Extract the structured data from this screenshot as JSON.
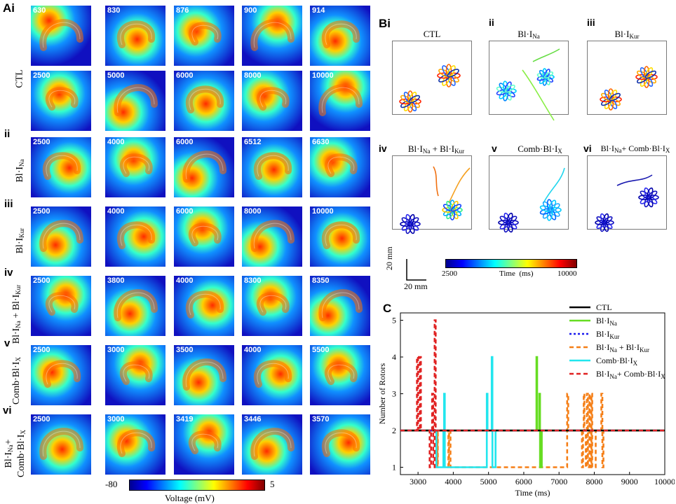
{
  "panel_a": {
    "letter": "Ai",
    "row_labels": {
      "ctl": "CTL",
      "ii_roman": "ii",
      "ii_text": "Bl·I",
      "ii_sub": "Na",
      "iii_roman": "iii",
      "iii_text": "Bl·I",
      "iii_sub": "Kur",
      "iv_roman": "iv",
      "iv_a": "Bl·I",
      "iv_a_sub": "Na",
      "iv_plus": " + Bl·I",
      "iv_b_sub": "Kur",
      "v_roman": "v",
      "v_text": "Comb·Bl·I",
      "v_sub": "X",
      "vi_roman": "vi",
      "vi_line1": "Bl·I",
      "vi_line1_sub": "Na",
      "vi_line1_plus": "+",
      "vi_line2": "Comb·Bl·I",
      "vi_line2_sub": "X"
    },
    "rows": [
      {
        "key": "ctl1",
        "times": [
          "630",
          "830",
          "876",
          "900",
          "914"
        ]
      },
      {
        "key": "ctl2",
        "times": [
          "2500",
          "5000",
          "6000",
          "8000",
          "10000"
        ]
      },
      {
        "key": "ii",
        "times": [
          "2500",
          "4000",
          "6000",
          "6512",
          "6630"
        ]
      },
      {
        "key": "iii",
        "times": [
          "2500",
          "4000",
          "6000",
          "8000",
          "10000"
        ]
      },
      {
        "key": "iv",
        "times": [
          "2500",
          "3800",
          "4000",
          "8300",
          "8350"
        ]
      },
      {
        "key": "v",
        "times": [
          "2500",
          "3000",
          "3500",
          "4000",
          "5500"
        ]
      },
      {
        "key": "vi",
        "times": [
          "2500",
          "3000",
          "3419",
          "3446",
          "3570"
        ]
      }
    ],
    "colorbar": {
      "min_label": "-80",
      "max_label": "5",
      "label": "Voltage (mV)"
    }
  },
  "panel_b": {
    "letter": "Bi",
    "titles": {
      "i": "CTL",
      "ii_roman": "ii",
      "ii_text": "Bl·I",
      "ii_sub": "Na",
      "iii_roman": "iii",
      "iii_text": "Bl·I",
      "iii_sub": "Kur",
      "iv_roman": "iv",
      "iv_a": "Bl·I",
      "iv_a_sub": "Na",
      "iv_plus": " + Bl·I",
      "iv_b_sub": "Kur",
      "v_roman": "v",
      "v_text": "Comb·Bl·I",
      "v_sub": "X",
      "vi_roman": "vi",
      "vi_a": "Bl·I",
      "vi_a_sub": "Na",
      "vi_plus": "+ Comb·Bl·I",
      "vi_b_sub": "X"
    },
    "scale_y": "20 mm",
    "scale_x": "20 mm",
    "colorbar": {
      "min_label": "2500",
      "max_label": "10000",
      "label": "Time  (ms)"
    }
  },
  "colors": {
    "ctl": "#000000",
    "bl_ina": "#66dd22",
    "bl_ikur": "#1a1aee",
    "bl_ina_ikur": "#f57f17",
    "comb": "#22e6ee",
    "bl_ina_comb": "#e02222"
  },
  "chart_data": {
    "type": "line",
    "letter": "C",
    "title": "",
    "xlabel": "Time (ms)",
    "ylabel": "Number of Rotors",
    "xlim": [
      2500,
      10000
    ],
    "ylim": [
      0.8,
      5.2
    ],
    "xticks": [
      "3000",
      "4000",
      "5000",
      "6000",
      "7000",
      "8000",
      "9000",
      "10000"
    ],
    "yticks": [
      "1",
      "2",
      "3",
      "4",
      "5"
    ],
    "legend": [
      {
        "name": "CTL",
        "sub": "",
        "sub2": ""
      },
      {
        "name": "Bl·I",
        "sub": "Na",
        "sub2": ""
      },
      {
        "name": "Bl·I",
        "sub": "Kur",
        "sub2": ""
      },
      {
        "name": "Bl·I",
        "sub": "Na",
        "mid": " + Bl·I",
        "sub2": "Kur"
      },
      {
        "name": "Comb·Bl·I",
        "sub": "X",
        "sub2": ""
      },
      {
        "name": "Bl·I",
        "sub": "Na",
        "mid": "+ Comb·Bl·I",
        "sub2": "X"
      }
    ],
    "series": [
      {
        "name": "Bl·I_Na + Bl·I_Kur",
        "color": "#f57f17",
        "dash": "6,4",
        "points": [
          [
            2500,
            2
          ],
          [
            3550,
            2
          ],
          [
            3550,
            1
          ],
          [
            3560,
            1
          ],
          [
            3560,
            2
          ],
          [
            3860,
            2
          ],
          [
            3860,
            1
          ],
          [
            3880,
            1
          ],
          [
            3880,
            2
          ],
          [
            3920,
            2
          ],
          [
            3920,
            1
          ],
          [
            7230,
            1
          ],
          [
            7230,
            3
          ],
          [
            7260,
            3
          ],
          [
            7260,
            2
          ],
          [
            7650,
            2
          ],
          [
            7650,
            1
          ],
          [
            7680,
            1
          ],
          [
            7680,
            2
          ],
          [
            7700,
            2
          ],
          [
            7700,
            3
          ],
          [
            7720,
            3
          ],
          [
            7720,
            2
          ],
          [
            7760,
            2
          ],
          [
            7760,
            1
          ],
          [
            7790,
            1
          ],
          [
            7790,
            3
          ],
          [
            7820,
            3
          ],
          [
            7820,
            1
          ],
          [
            7860,
            1
          ],
          [
            7860,
            3
          ],
          [
            7880,
            3
          ],
          [
            7880,
            2
          ],
          [
            7900,
            2
          ],
          [
            7900,
            1
          ],
          [
            7920,
            1
          ],
          [
            7920,
            3
          ],
          [
            7940,
            3
          ],
          [
            7940,
            1
          ],
          [
            8040,
            1
          ],
          [
            8040,
            2
          ],
          [
            8200,
            2
          ],
          [
            8200,
            3
          ],
          [
            8230,
            3
          ],
          [
            8230,
            1
          ],
          [
            8260,
            1
          ],
          [
            8260,
            2
          ],
          [
            10000,
            2
          ]
        ]
      },
      {
        "name": "Comb·Bl·I_X",
        "color": "#22e6ee",
        "dash": "",
        "points": [
          [
            2500,
            2
          ],
          [
            3520,
            2
          ],
          [
            3520,
            1
          ],
          [
            3720,
            1
          ],
          [
            3720,
            2
          ],
          [
            3740,
            2
          ],
          [
            3740,
            3
          ],
          [
            3760,
            3
          ],
          [
            3760,
            1
          ],
          [
            4950,
            1
          ],
          [
            4950,
            3
          ],
          [
            4970,
            3
          ],
          [
            4970,
            2
          ],
          [
            5090,
            2
          ],
          [
            5090,
            4
          ],
          [
            5110,
            4
          ],
          [
            5110,
            1
          ],
          [
            5200,
            1
          ],
          [
            5200,
            2
          ],
          [
            10000,
            2
          ]
        ]
      },
      {
        "name": "Bl·I_Na",
        "color": "#66dd22",
        "dash": "",
        "points": [
          [
            2500,
            2
          ],
          [
            6360,
            2
          ],
          [
            6360,
            4
          ],
          [
            6380,
            4
          ],
          [
            6380,
            2
          ],
          [
            6440,
            2
          ],
          [
            6440,
            3
          ],
          [
            6460,
            3
          ],
          [
            6460,
            1
          ],
          [
            6510,
            1
          ],
          [
            6510,
            2
          ],
          [
            10000,
            2
          ]
        ]
      },
      {
        "name": "CTL",
        "color": "#000000",
        "dash": "",
        "points": [
          [
            2500,
            2
          ],
          [
            10000,
            2
          ]
        ]
      },
      {
        "name": "Bl·I_Kur",
        "color": "#1a1aee",
        "dash": "5,5",
        "points": [
          [
            2500,
            2
          ],
          [
            10000,
            2
          ]
        ]
      },
      {
        "name": "Bl·I_Na + Comb·Bl·I_X",
        "color": "#e02222",
        "dash": "6,4",
        "points": [
          [
            2500,
            2
          ],
          [
            2970,
            2
          ],
          [
            2970,
            4
          ],
          [
            3000,
            4
          ],
          [
            3000,
            2
          ],
          [
            3050,
            2
          ],
          [
            3050,
            4
          ],
          [
            3080,
            4
          ],
          [
            3080,
            2
          ],
          [
            3330,
            2
          ],
          [
            3330,
            1
          ],
          [
            3370,
            1
          ],
          [
            3370,
            2
          ],
          [
            3400,
            2
          ],
          [
            3400,
            3
          ],
          [
            3430,
            3
          ],
          [
            3430,
            1
          ],
          [
            3470,
            1
          ],
          [
            3470,
            5
          ],
          [
            3500,
            5
          ],
          [
            3500,
            2
          ],
          [
            10000,
            2
          ]
        ]
      }
    ]
  }
}
